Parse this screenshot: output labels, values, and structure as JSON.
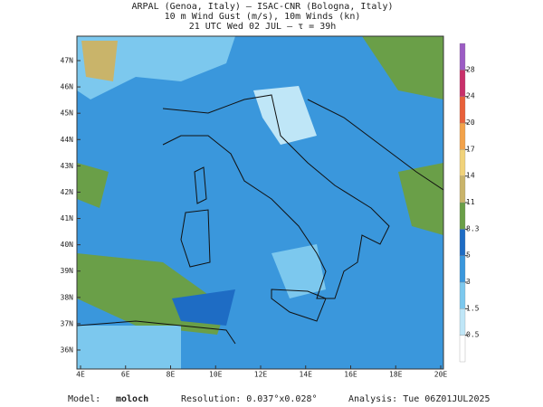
{
  "header": {
    "lines": [
      "ARPAL (Genoa, Italy)  –  ISAC-CNR (Bologna, Italy)",
      "10 m Wind Gust (m/s), 10m Winds (kn)",
      "21 UTC Wed 02 JUL  –  τ = 39h"
    ]
  },
  "map": {
    "lon_labels": [
      "4E",
      "6E",
      "8E",
      "10E",
      "12E",
      "14E",
      "16E",
      "18E",
      "20E"
    ],
    "lat_labels": [
      "47N",
      "46N",
      "45N",
      "44N",
      "43N",
      "42N",
      "41N",
      "40N",
      "39N",
      "38N",
      "37N",
      "36N"
    ]
  },
  "colorbar": {
    "ticks": [
      0.5,
      1.5,
      3,
      5,
      8.3,
      11,
      14,
      17,
      20,
      24,
      28
    ],
    "colors": [
      "#ffffff",
      "#bfe6f7",
      "#7cc8ee",
      "#3a97dc",
      "#1e6cc4",
      "#6a9f48",
      "#c9b46a",
      "#f0d27a",
      "#f2a24a",
      "#e8603a",
      "#c8306a",
      "#9c5cc4"
    ]
  },
  "footer": {
    "model_label": "Model:",
    "model": "moloch",
    "resolution": "Resolution: 0.037°x0.028°",
    "analysis": "Analysis: Tue 06Z01JUL2025"
  }
}
